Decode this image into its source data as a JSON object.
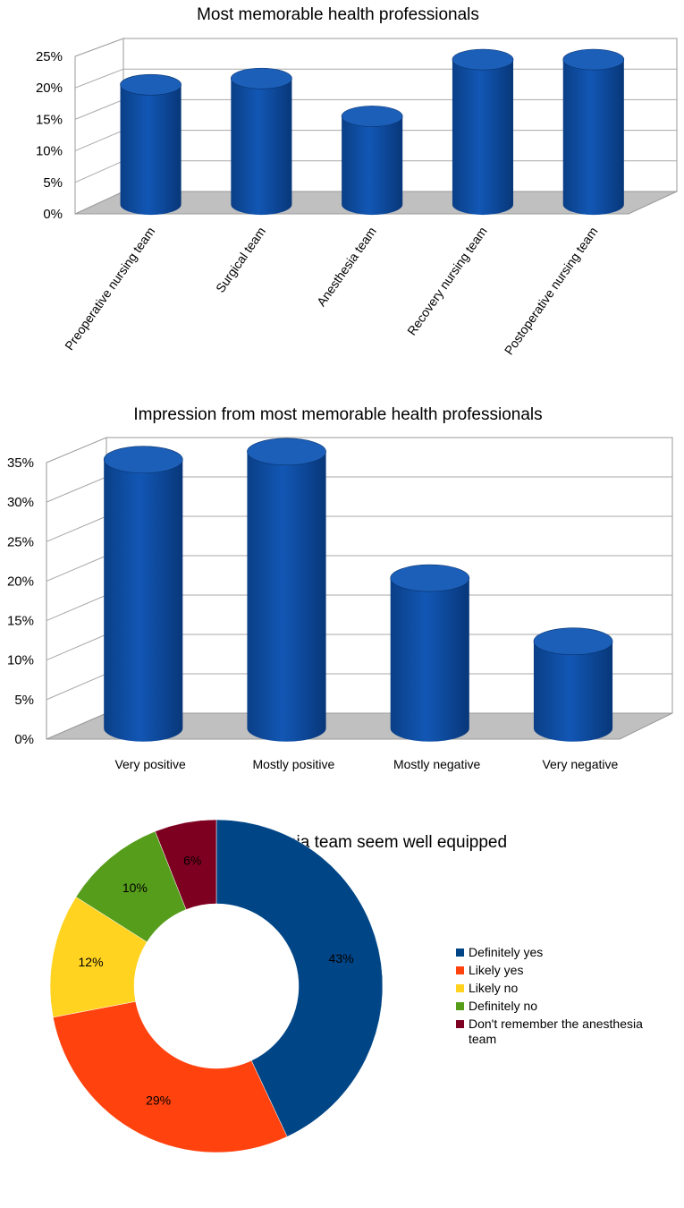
{
  "chart_data": [
    {
      "type": "bar",
      "title": "Most memorable health professionals",
      "categories": [
        "Preoperative nursing team",
        "Surgical team",
        "Anesthesia team",
        "Recovery nursing team",
        "Postoperative nursing team"
      ],
      "values": [
        19,
        20,
        14,
        23,
        23
      ],
      "ylim": [
        0,
        25
      ],
      "yticks": [
        "0%",
        "5%",
        "10%",
        "15%",
        "20%",
        "25%"
      ],
      "grid": true,
      "color": "#0b4a9c"
    },
    {
      "type": "bar",
      "title": "Impression from most memorable health professionals",
      "categories": [
        "Very positive",
        "Mostly positive",
        "Mostly negative",
        "Very negative"
      ],
      "values": [
        34,
        35,
        19,
        11
      ],
      "ylim": [
        0,
        35
      ],
      "yticks": [
        "0%",
        "5%",
        "10%",
        "15%",
        "20%",
        "25%",
        "30%",
        "35%"
      ],
      "grid": true,
      "color": "#0b4a9c"
    },
    {
      "type": "pie",
      "title": "Did the anesthesia team seem well equipped",
      "labels": [
        "Definitely yes",
        "Likely yes",
        "Likely no",
        "Definitely no",
        "Don't remember the anesthesia team"
      ],
      "values": [
        43,
        29,
        12,
        10,
        6
      ],
      "value_labels": [
        "43%",
        "29%",
        "12%",
        "10%",
        "6%"
      ],
      "colors": [
        "#004586",
        "#ff420e",
        "#ffd320",
        "#579d1c",
        "#7e0021"
      ],
      "legend": "right"
    }
  ]
}
